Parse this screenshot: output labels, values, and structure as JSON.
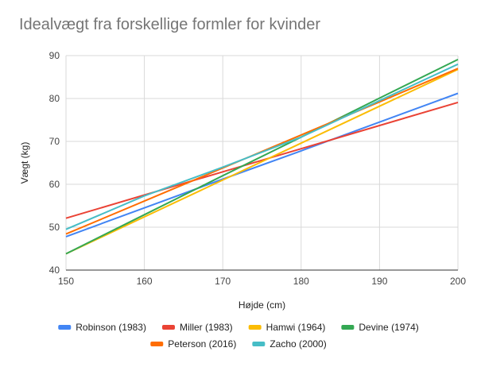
{
  "chart_data": {
    "type": "line",
    "title": "Idealvægt fra forskellige formler for kvinder",
    "xlabel": "Højde (cm)",
    "ylabel": "Vægt (kg)",
    "xlim": [
      150,
      200
    ],
    "ylim": [
      40,
      90
    ],
    "x_ticks": [
      "150",
      "160",
      "170",
      "180",
      "190",
      "200"
    ],
    "y_ticks": [
      "40",
      "50",
      "60",
      "70",
      "80",
      "90"
    ],
    "grid": true,
    "legend_position": "bottom",
    "x": [
      150,
      160,
      170,
      180,
      190,
      200
    ],
    "series": [
      {
        "name": "Robinson (1983)",
        "color": "#4285F4",
        "values": [
          47.8,
          54.5,
          61.2,
          67.8,
          74.5,
          81.2
        ]
      },
      {
        "name": "Miller (1983)",
        "color": "#EA4335",
        "values": [
          52.1,
          57.5,
          62.9,
          68.3,
          73.7,
          79.1
        ]
      },
      {
        "name": "Hamwi (1964)",
        "color": "#FBBC04",
        "values": [
          43.8,
          52.4,
          61.0,
          69.6,
          78.2,
          86.8
        ]
      },
      {
        "name": "Devine (1974)",
        "color": "#34A853",
        "values": [
          43.8,
          52.9,
          62.0,
          71.0,
          80.1,
          89.1
        ]
      },
      {
        "name": "Peterson (2016)",
        "color": "#FF6D01",
        "values": [
          48.4,
          56.1,
          63.8,
          71.5,
          79.2,
          87.0
        ]
      },
      {
        "name": "Zacho (2000)",
        "color": "#46BDC6",
        "values": [
          49.5,
          57.3,
          64.0,
          71.0,
          79.5,
          88.0
        ]
      }
    ]
  }
}
